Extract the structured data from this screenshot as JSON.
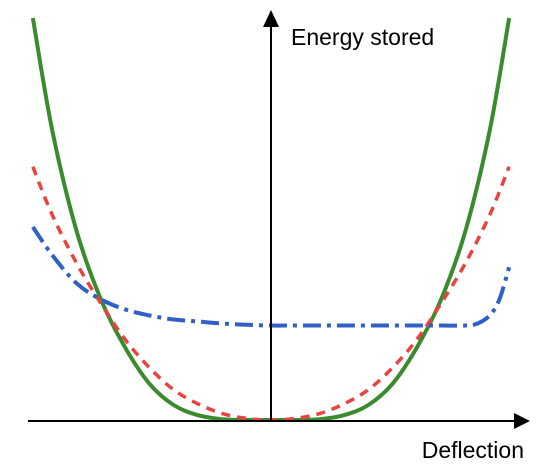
{
  "chart_data": {
    "type": "line",
    "title": "",
    "xlabel": "Deflection",
    "ylabel": "Energy stored",
    "xlim": [
      -1,
      1
    ],
    "ylim": [
      0,
      1
    ],
    "grid": false,
    "legend": "none",
    "ticks": false,
    "series": [
      {
        "style": "solid",
        "color": "#3a8a2e",
        "x": [
          -0.98,
          -0.9,
          -0.8,
          -0.7,
          -0.6,
          -0.5,
          -0.4,
          -0.3,
          -0.2,
          -0.1,
          0.0,
          0.1,
          0.2,
          0.3,
          0.4,
          0.5,
          0.6,
          0.7,
          0.8,
          0.9,
          0.98
        ],
        "y": [
          1.0,
          0.72,
          0.47,
          0.3,
          0.18,
          0.09,
          0.037,
          0.012,
          0.002,
          0.0,
          0.0,
          0.0,
          0.002,
          0.012,
          0.037,
          0.09,
          0.18,
          0.3,
          0.47,
          0.72,
          1.0
        ]
      },
      {
        "style": "dashed",
        "color": "#e8433f",
        "x": [
          -0.98,
          -0.9,
          -0.8,
          -0.7,
          -0.6,
          -0.5,
          -0.4,
          -0.3,
          -0.2,
          -0.1,
          0.0,
          0.1,
          0.2,
          0.3,
          0.4,
          0.5,
          0.6,
          0.7,
          0.8,
          0.9,
          0.98
        ],
        "y": [
          0.63,
          0.51,
          0.39,
          0.29,
          0.2,
          0.13,
          0.075,
          0.04,
          0.016,
          0.004,
          0.0,
          0.004,
          0.016,
          0.04,
          0.075,
          0.13,
          0.2,
          0.29,
          0.39,
          0.51,
          0.63
        ]
      },
      {
        "style": "dash-dot",
        "color": "#2f5fc7",
        "x": [
          -0.98,
          -0.9,
          -0.8,
          -0.7,
          -0.6,
          -0.5,
          -0.4,
          -0.3,
          -0.2,
          -0.1,
          0.0,
          0.1,
          0.2,
          0.3,
          0.4,
          0.5,
          0.6,
          0.7,
          0.8,
          0.85,
          0.9,
          0.94,
          0.98
        ],
        "y": [
          0.48,
          0.41,
          0.34,
          0.3,
          0.275,
          0.26,
          0.25,
          0.245,
          0.24,
          0.237,
          0.235,
          0.235,
          0.235,
          0.235,
          0.235,
          0.235,
          0.235,
          0.235,
          0.235,
          0.24,
          0.26,
          0.3,
          0.38
        ]
      }
    ]
  }
}
